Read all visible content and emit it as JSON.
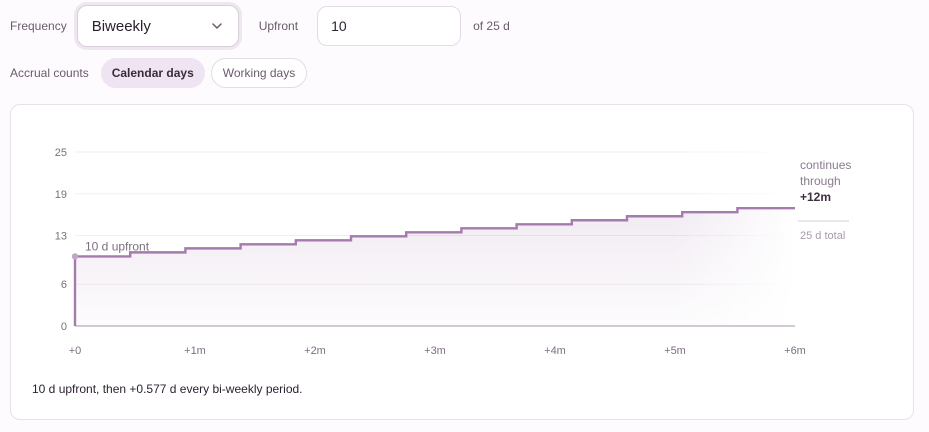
{
  "controls": {
    "frequency_label": "Frequency",
    "frequency_value": "Biweekly",
    "upfront_label": "Upfront",
    "upfront_value": "10",
    "of_total_label": "of 25 d",
    "accrual_label": "Accrual counts",
    "accrual_options": [
      "Calendar days",
      "Working days"
    ],
    "accrual_selected": "Calendar days"
  },
  "colors": {
    "line": "#a57aad",
    "accent_bg": "#efe4f1"
  },
  "chart_data": {
    "type": "line",
    "step": true,
    "x_unit": "months",
    "xlim": [
      0,
      6
    ],
    "ylim": [
      0,
      25
    ],
    "yticks": [
      0,
      6,
      13,
      19,
      25
    ],
    "ytick_labels": [
      "0",
      "6",
      "13",
      "19",
      "25"
    ],
    "xticks": [
      0,
      1,
      2,
      3,
      4,
      5,
      6
    ],
    "xtick_labels": [
      "+0",
      "+1m",
      "+2m",
      "+3m",
      "+4m",
      "+5m",
      "+6m"
    ],
    "upfront": 10,
    "increment": 0.577,
    "x": [
      0,
      0.46,
      0.92,
      1.38,
      1.84,
      2.3,
      2.76,
      3.22,
      3.68,
      4.14,
      4.6,
      5.06,
      5.52,
      6
    ],
    "values": [
      10,
      10.577,
      11.154,
      11.731,
      12.308,
      12.885,
      13.462,
      14.039,
      14.616,
      15.193,
      15.77,
      16.347,
      16.924,
      16.924
    ],
    "grid": true,
    "annotations": {
      "upfront_label": "10 d upfront",
      "continues_line1": "continues",
      "continues_line2": "through",
      "continues_line3": "+12m",
      "total_label": "25 d total"
    }
  },
  "summary": "10 d upfront, then +0.577 d every bi-weekly period."
}
